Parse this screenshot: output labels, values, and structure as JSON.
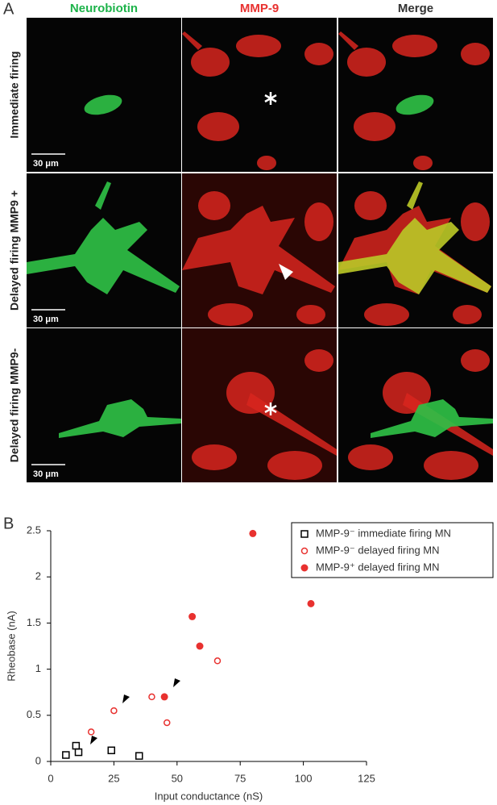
{
  "panel_a": {
    "label": "A",
    "columns": [
      "Neurobiotin",
      "MMP-9",
      "Merge"
    ],
    "rows": [
      "Immediate firing",
      "Delayed firing MMP9 +",
      "Delayed firing MMP9-"
    ],
    "scale_bar": "30 μm"
  },
  "panel_b": {
    "label": "B"
  },
  "chart_data": {
    "type": "scatter",
    "x_label": "Input conductance (nS)",
    "y_label": "Rheobase (nA)",
    "xlim": [
      0,
      125
    ],
    "xticks": [
      0,
      25,
      50,
      75,
      100,
      125
    ],
    "ylim": [
      0,
      2.5
    ],
    "yticks": [
      0,
      0.5,
      1,
      1.5,
      2,
      2.5
    ],
    "legend": "top-right",
    "series": [
      {
        "name": "MMP-9⁻ immediate firing MN",
        "color": "#000000",
        "marker": "square-open",
        "x": [
          6,
          10,
          11,
          24,
          35
        ],
        "values": [
          0.07,
          0.17,
          0.1,
          0.12,
          0.06
        ]
      },
      {
        "name": "MMP-9⁻ delayed firing MN",
        "color": "#e8312f",
        "marker": "circle-open",
        "x": [
          16,
          25,
          40,
          46,
          66
        ],
        "values": [
          0.32,
          0.55,
          0.7,
          0.42,
          1.09
        ]
      },
      {
        "name": "MMP-9⁺ delayed firing MN",
        "color": "#e8312f",
        "marker": "circle-filled",
        "x": [
          45,
          56,
          59,
          80,
          103
        ],
        "values": [
          0.7,
          1.57,
          1.25,
          2.47,
          1.71
        ]
      }
    ]
  }
}
